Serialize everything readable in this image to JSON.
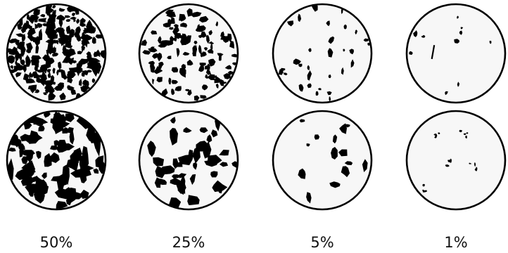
{
  "figure": {
    "columns": [
      {
        "label": "50%",
        "coverage": 0.5
      },
      {
        "label": "25%",
        "coverage": 0.25
      },
      {
        "label": "5%",
        "coverage": 0.05
      },
      {
        "label": "1%",
        "coverage": 0.01
      }
    ],
    "rows": [
      {
        "pattern": "fine-particles"
      },
      {
        "pattern": "coarse-clusters"
      }
    ],
    "colors": {
      "ink": "#000000",
      "background": "#ffffff",
      "circle_fill": "#f7f7f7"
    }
  }
}
